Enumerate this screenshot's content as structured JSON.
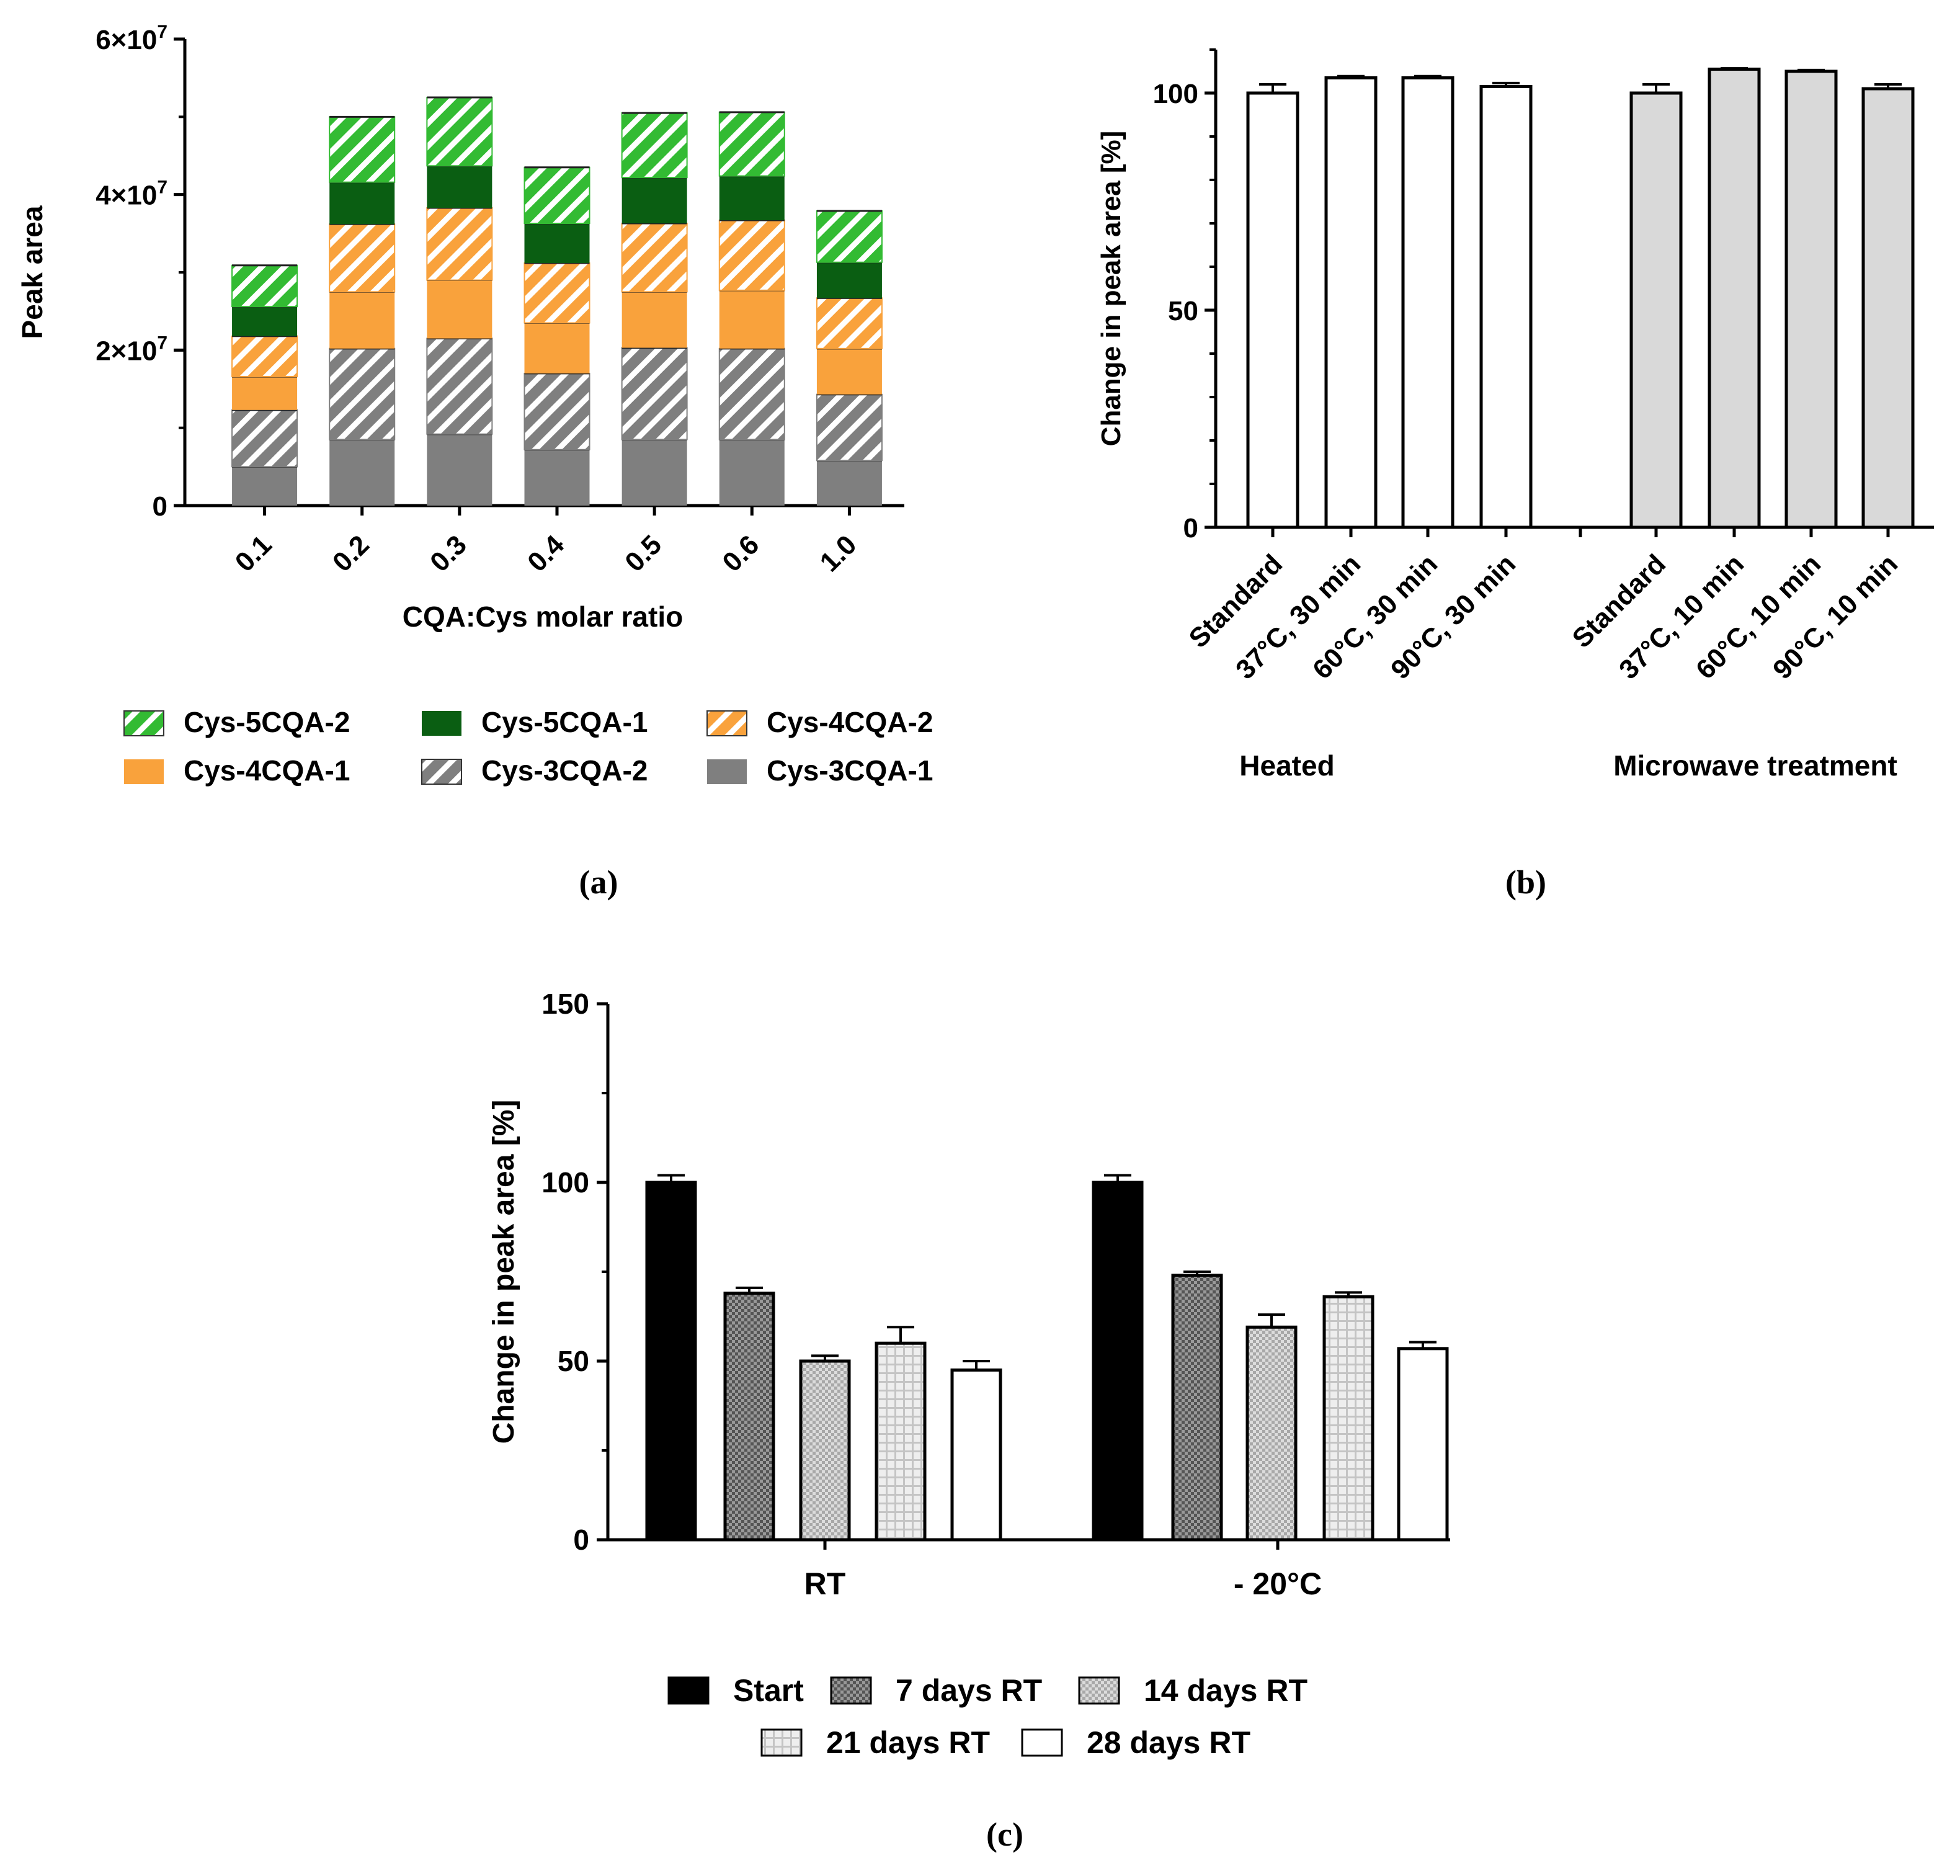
{
  "panels": [
    {
      "label": "(a)"
    },
    {
      "label": "(b)"
    },
    {
      "label": "(c)"
    }
  ],
  "colors": {
    "green": "#33bb33",
    "dark_green": "#0a5e12",
    "orange": "#f9a23c",
    "gray": "#7f7f7f",
    "light_gray": "#d9d9d9"
  },
  "chart_data": [
    {
      "id": "a",
      "type": "bar",
      "stacked": true,
      "ylabel": "Peak area",
      "xlabel": "CQA:Cys molar ratio",
      "ylim": [
        0,
        60000000
      ],
      "yticks": [
        {
          "value": 0,
          "label": "0",
          "exp": ""
        },
        {
          "value": 20000000,
          "label": "2×10",
          "exp": "7"
        },
        {
          "value": 40000000,
          "label": "4×10",
          "exp": "7"
        },
        {
          "value": 60000000,
          "label": "6×10",
          "exp": "7"
        }
      ],
      "categories": [
        "0.1",
        "0.2",
        "0.3",
        "0.4",
        "0.5",
        "0.6",
        "1.0"
      ],
      "series": [
        {
          "name": "Cys-3CQA-1",
          "pattern": "solid",
          "color": "#7f7f7f",
          "values": [
            5000000,
            8500000,
            9200000,
            7200000,
            8500000,
            8500000,
            5800000
          ]
        },
        {
          "name": "Cys-3CQA-2",
          "pattern": "hatch",
          "color": "#7f7f7f",
          "values": [
            7300000,
            11700000,
            12300000,
            9800000,
            11800000,
            11700000,
            8500000
          ]
        },
        {
          "name": "Cys-4CQA-1",
          "pattern": "solid",
          "color": "#f9a23c",
          "values": [
            4300000,
            7300000,
            7500000,
            6500000,
            7200000,
            7500000,
            5900000
          ]
        },
        {
          "name": "Cys-4CQA-2",
          "pattern": "hatch",
          "color": "#f9a23c",
          "values": [
            5200000,
            8700000,
            9300000,
            7700000,
            8800000,
            9000000,
            6500000
          ]
        },
        {
          "name": "Cys-5CQA-1",
          "pattern": "solid",
          "color": "#0a5e12",
          "values": [
            3800000,
            5400000,
            5400000,
            5100000,
            5900000,
            5700000,
            4600000
          ]
        },
        {
          "name": "Cys-5CQA-2",
          "pattern": "hatch",
          "color": "#33bb33",
          "values": [
            5300000,
            8400000,
            8800000,
            7200000,
            8300000,
            8200000,
            6600000
          ]
        }
      ],
      "legend_order": [
        "Cys-5CQA-2",
        "Cys-5CQA-1",
        "Cys-4CQA-2",
        "Cys-4CQA-1",
        "Cys-3CQA-2",
        "Cys-3CQA-1"
      ],
      "legend": "bottom"
    },
    {
      "id": "b",
      "type": "bar",
      "ylabel": "Change in peak area [%]",
      "ylim": [
        0,
        110
      ],
      "yticks": [
        0,
        50,
        100
      ],
      "groups": [
        {
          "name": "Heated",
          "fill": "#ffffff",
          "bars": [
            {
              "label": "Standard",
              "value": 100,
              "error": 2
            },
            {
              "label": "37°C, 30 min",
              "value": 103.5,
              "error": 0.4
            },
            {
              "label": "60°C, 30 min",
              "value": 103.5,
              "error": 0.4
            },
            {
              "label": "90°C, 30 min",
              "value": 101.5,
              "error": 0.8
            }
          ]
        },
        {
          "name": "Microwave treatment",
          "fill": "#d9d9d9",
          "bars": [
            {
              "label": "Standard",
              "value": 100,
              "error": 2
            },
            {
              "label": "37°C, 10 min",
              "value": 105.5,
              "error": 0.2
            },
            {
              "label": "60°C, 10 min",
              "value": 105,
              "error": 0.3
            },
            {
              "label": "90°C, 10 min",
              "value": 101,
              "error": 1
            }
          ]
        }
      ]
    },
    {
      "id": "c",
      "type": "bar",
      "ylabel": "Change in peak area [%]",
      "ylim": [
        0,
        150
      ],
      "yticks": [
        0,
        50,
        100,
        150
      ],
      "categories": [
        "RT",
        "- 20°C"
      ],
      "series": [
        {
          "name": "Start",
          "pattern": "solid-black",
          "values": [
            100,
            100
          ],
          "errors": [
            2,
            2
          ]
        },
        {
          "name": "7 days RT",
          "pattern": "dense-check",
          "values": [
            69,
            74
          ],
          "errors": [
            1.5,
            1
          ]
        },
        {
          "name": "14 days RT",
          "pattern": "light-check",
          "values": [
            50,
            59.5
          ],
          "errors": [
            1.5,
            3.5
          ]
        },
        {
          "name": "21 days RT",
          "pattern": "grid",
          "values": [
            55,
            68
          ],
          "errors": [
            4.5,
            1.2
          ]
        },
        {
          "name": "28 days RT",
          "pattern": "white",
          "values": [
            47.5,
            53.5
          ],
          "errors": [
            2.5,
            1.8
          ]
        }
      ],
      "legend": "bottom"
    }
  ]
}
